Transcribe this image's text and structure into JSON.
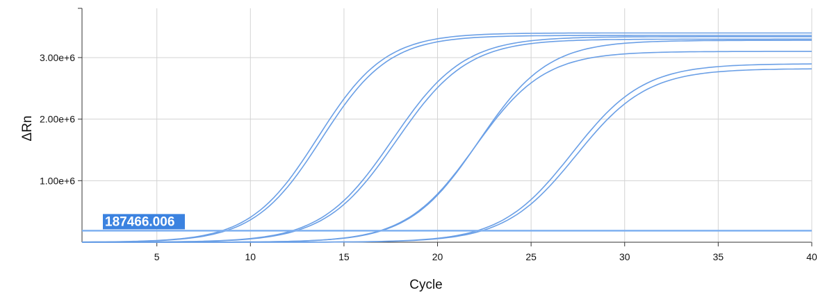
{
  "chart_data": {
    "type": "line",
    "title": "",
    "xlabel": "Cycle",
    "ylabel": "ΔRn",
    "xlim": [
      1,
      40
    ],
    "ylim": [
      0,
      3800000
    ],
    "x_ticks": [
      5,
      10,
      15,
      20,
      25,
      30,
      35,
      40
    ],
    "x_tick_labels": [
      "5",
      "10",
      "15",
      "20",
      "25",
      "30",
      "35",
      "40"
    ],
    "y_ticks": [
      1000000,
      2000000,
      3000000
    ],
    "y_tick_labels": [
      "1.00e+6",
      "2.00e+6",
      "3.00e+6"
    ],
    "grid": true,
    "line_color": "#6a9fe6",
    "threshold": {
      "value": 187466.006,
      "label": "187466.006",
      "color": "#7fb0f0",
      "label_bg": "#3b82e0"
    },
    "series": [
      {
        "base": 0,
        "plateau": 3400000,
        "midpoint": 13.6,
        "slope": 1.8
      },
      {
        "base": 0,
        "plateau": 3360000,
        "midpoint": 13.8,
        "slope": 1.8
      },
      {
        "base": 0,
        "plateau": 3340000,
        "midpoint": 17.6,
        "slope": 1.9
      },
      {
        "base": 0,
        "plateau": 3300000,
        "midpoint": 17.8,
        "slope": 1.9
      },
      {
        "base": 0,
        "plateau": 3280000,
        "midpoint": 22.2,
        "slope": 1.85
      },
      {
        "base": 0,
        "plateau": 3100000,
        "midpoint": 22.0,
        "slope": 1.85
      },
      {
        "base": 0,
        "plateau": 2900000,
        "midpoint": 27.2,
        "slope": 1.9
      },
      {
        "base": 0,
        "plateau": 2820000,
        "midpoint": 27.4,
        "slope": 1.9
      }
    ]
  }
}
